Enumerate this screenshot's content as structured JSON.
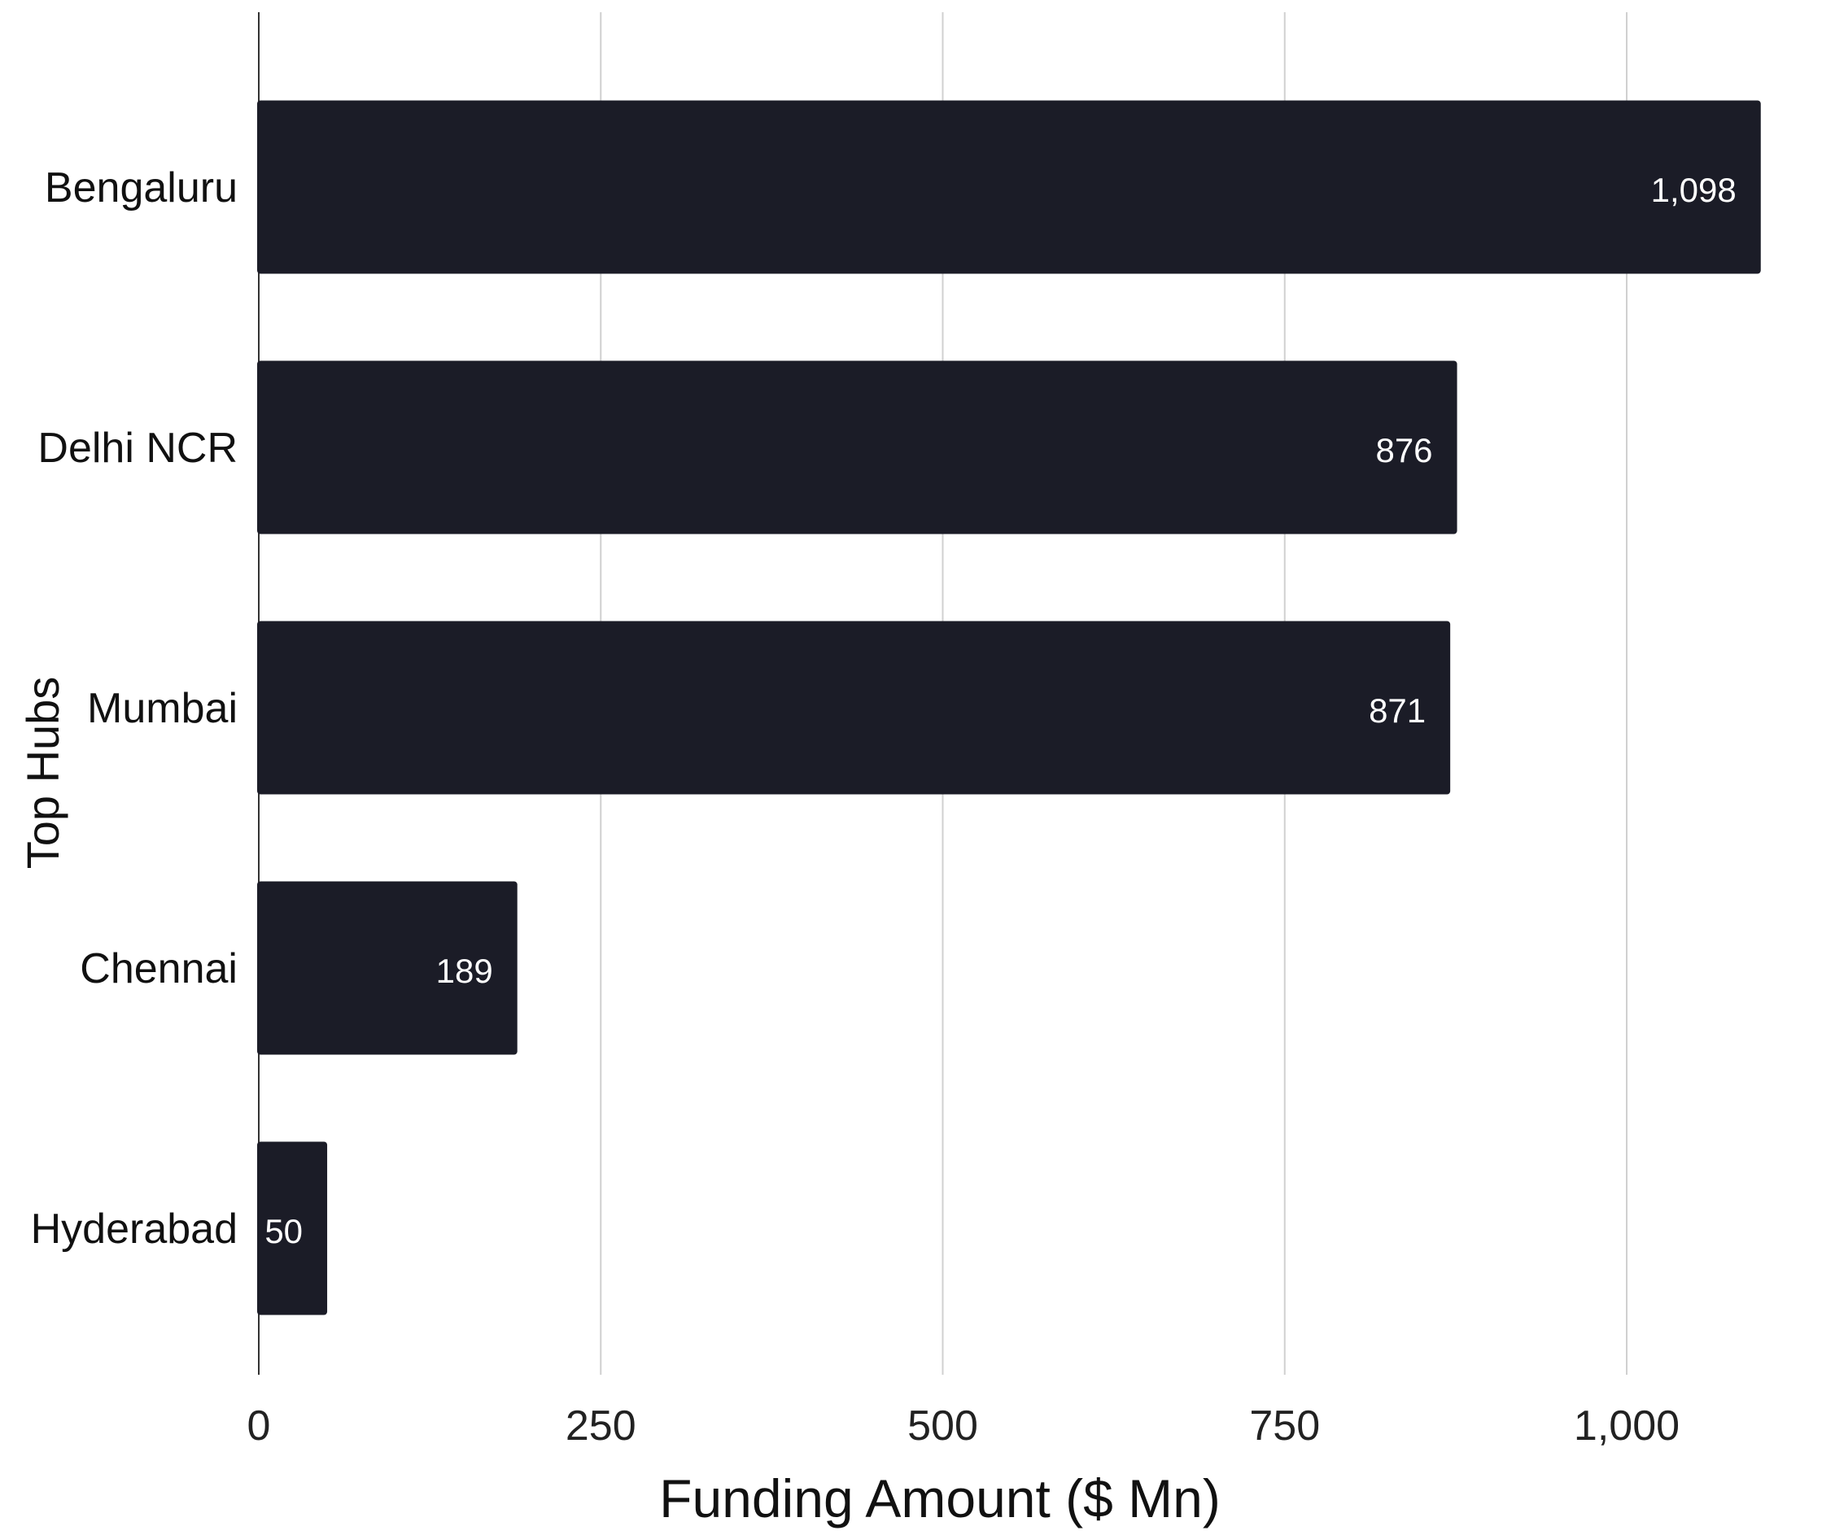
{
  "chart_data": {
    "type": "bar",
    "orientation": "horizontal",
    "categories": [
      "Bengaluru",
      "Delhi NCR",
      "Mumbai",
      "Chennai",
      "Hyderabad"
    ],
    "values": [
      1098,
      876,
      871,
      189,
      50
    ],
    "value_labels": [
      "1,098",
      "876",
      "871",
      "189",
      "50"
    ],
    "xlabel": "Funding Amount ($ Mn)",
    "ylabel": "Top Hubs",
    "xlim": [
      0,
      1100
    ],
    "xticks": [
      0,
      250,
      500,
      750,
      1000
    ],
    "xtick_labels": [
      "0",
      "250",
      "500",
      "750",
      "1,000"
    ],
    "grid": "vertical",
    "bar_color": "#1b1c27",
    "label_color": "#ffffff"
  }
}
